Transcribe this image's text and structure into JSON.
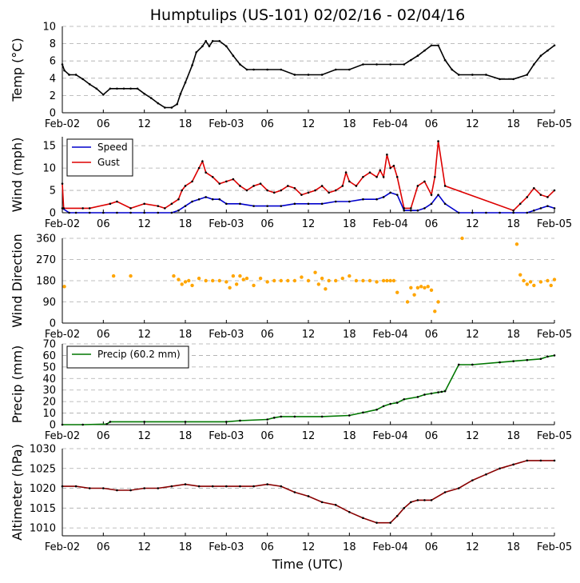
{
  "title": "Humptulips (US-101) 02/02/16 - 02/04/16",
  "xlabel": "Time (UTC)",
  "x_ticks": [
    "Feb-02",
    "06",
    "12",
    "18",
    "Feb-03",
    "06",
    "12",
    "18",
    "Feb-04",
    "06",
    "12",
    "18",
    "Feb-05"
  ],
  "chart_data": [
    {
      "type": "line",
      "name": "temperature",
      "ylabel": "Temp (°C)",
      "ylim": [
        0,
        10
      ],
      "yticks": [
        "0",
        "2",
        "4",
        "6",
        "8",
        "10"
      ],
      "x_unit": "hours since Feb-02 00:00 UTC",
      "series": [
        {
          "name": "Temp",
          "color": "#000000",
          "x": [
            0,
            0.3,
            1,
            2,
            3,
            4,
            5,
            6,
            7,
            8,
            9,
            10,
            11,
            12,
            13,
            14,
            15,
            16,
            16.8,
            17.3,
            18,
            19,
            19.6,
            20.5,
            21,
            21.5,
            22,
            23,
            24,
            25,
            26,
            27,
            28,
            30,
            32,
            34,
            36,
            38,
            40,
            42,
            44,
            46,
            48,
            50,
            51,
            52,
            53,
            54,
            55,
            56,
            57,
            58,
            60,
            62,
            64,
            66,
            68,
            69,
            70,
            71,
            72
          ],
          "y": [
            5.6,
            4.9,
            4.4,
            4.4,
            3.9,
            3.3,
            2.8,
            2.1,
            2.8,
            2.8,
            2.8,
            2.8,
            2.8,
            2.2,
            1.7,
            1.1,
            0.6,
            0.6,
            1.0,
            2.2,
            3.5,
            5.5,
            7.0,
            7.7,
            8.3,
            7.7,
            8.3,
            8.3,
            7.7,
            6.6,
            5.6,
            5.0,
            5.0,
            5.0,
            5.0,
            4.4,
            4.4,
            4.4,
            5.0,
            5.0,
            5.6,
            5.6,
            5.6,
            5.6,
            6.1,
            6.6,
            7.2,
            7.8,
            7.8,
            6.1,
            5.0,
            4.4,
            4.4,
            4.4,
            3.9,
            3.9,
            4.4,
            5.6,
            6.6,
            7.2,
            7.8
          ]
        }
      ]
    },
    {
      "type": "line",
      "name": "wind",
      "ylabel": "Wind (mph)",
      "ylim": [
        0,
        17
      ],
      "yticks": [
        "0",
        "5",
        "10",
        "15"
      ],
      "legend": [
        "Speed",
        "Gust"
      ],
      "legend_position": "top-left",
      "series": [
        {
          "name": "Speed",
          "color": "#0000cc",
          "x": [
            0,
            1,
            2,
            4,
            6,
            8,
            10,
            12,
            14,
            16,
            17,
            18,
            19,
            20,
            21,
            22,
            23,
            24,
            26,
            28,
            30,
            32,
            34,
            36,
            38,
            40,
            42,
            44,
            46,
            47,
            48,
            49,
            50,
            51,
            52,
            53,
            54,
            55,
            56,
            58,
            60,
            62,
            64,
            66,
            68,
            69,
            70,
            71,
            72
          ],
          "y": [
            1,
            0,
            0,
            0,
            0,
            0,
            0,
            0,
            0,
            0,
            0.5,
            1.5,
            2.5,
            3,
            3.5,
            3,
            3,
            2,
            2,
            1.5,
            1.5,
            1.5,
            2,
            2,
            2,
            2.5,
            2.5,
            3,
            3,
            3.5,
            4.5,
            4,
            0.5,
            0.5,
            0.5,
            1,
            2,
            4,
            2,
            0,
            0,
            0,
            0,
            0,
            0,
            0.5,
            1,
            1.5,
            1
          ]
        },
        {
          "name": "Gust",
          "color": "#dd0000",
          "x": [
            0,
            0.2,
            3,
            4,
            7,
            8,
            10,
            12,
            14,
            15,
            16,
            17,
            17.5,
            18,
            19,
            20,
            20.5,
            21,
            22,
            23,
            24,
            25,
            26,
            27,
            28,
            29,
            30,
            31,
            32,
            33,
            34,
            35,
            36,
            37,
            38,
            39,
            40,
            41,
            41.5,
            42,
            43,
            44,
            45,
            46,
            46.5,
            47,
            47.5,
            48,
            48.5,
            49,
            50,
            51,
            52,
            53,
            54,
            54.5,
            55,
            56,
            66,
            67,
            68,
            69,
            70,
            71,
            72
          ],
          "y": [
            6.5,
            1,
            1,
            1,
            2,
            2.5,
            1,
            2,
            1.5,
            1,
            2,
            3,
            5,
            6,
            7,
            10,
            11.5,
            9,
            8,
            6.5,
            7,
            7.5,
            6,
            5,
            6,
            6.5,
            5,
            4.5,
            5,
            6,
            5.5,
            4,
            4.5,
            5,
            6,
            4.5,
            5,
            6,
            9,
            7,
            6,
            8,
            9,
            8,
            9.5,
            8,
            13,
            10,
            10.5,
            8,
            1,
            1,
            6,
            7,
            4,
            8,
            16,
            6,
            0.5,
            2,
            3.5,
            5.5,
            4,
            3.5,
            5
          ]
        }
      ]
    },
    {
      "type": "scatter",
      "name": "wind_direction",
      "ylabel": "Wind Direction",
      "ylim": [
        0,
        360
      ],
      "yticks": [
        "0",
        "90",
        "180",
        "270",
        "360"
      ],
      "series": [
        {
          "name": "Direction",
          "color": "#ffa500",
          "x": [
            0.3,
            7.5,
            10,
            16.3,
            17,
            17.5,
            18,
            18.5,
            19,
            20,
            21,
            22,
            23,
            24,
            24.5,
            25,
            25.5,
            26,
            26.5,
            27,
            28,
            29,
            30,
            31,
            32,
            33,
            34,
            35,
            36,
            37,
            37.5,
            38,
            38.5,
            39,
            40,
            41,
            42,
            43,
            44,
            45,
            46,
            47,
            47.5,
            48,
            48.5,
            49,
            50.5,
            51,
            51.5,
            52,
            52.5,
            53,
            53.5,
            54,
            54.5,
            55,
            58.5,
            66.5,
            67,
            67.5,
            68,
            68.5,
            69,
            70,
            71,
            71.5,
            72
          ],
          "y": [
            155,
            200,
            200,
            200,
            185,
            165,
            175,
            180,
            160,
            190,
            180,
            180,
            180,
            175,
            150,
            200,
            165,
            200,
            185,
            190,
            160,
            190,
            175,
            180,
            180,
            180,
            180,
            195,
            180,
            215,
            165,
            190,
            145,
            180,
            180,
            190,
            200,
            180,
            180,
            180,
            175,
            180,
            180,
            180,
            180,
            130,
            90,
            150,
            120,
            150,
            155,
            150,
            155,
            140,
            50,
            90,
            360,
            335,
            205,
            180,
            165,
            175,
            160,
            175,
            180,
            160,
            185
          ]
        }
      ]
    },
    {
      "type": "line",
      "name": "precip",
      "ylabel": "Precip (mm)",
      "ylim": [
        0,
        70
      ],
      "yticks": [
        "0",
        "10",
        "20",
        "30",
        "40",
        "50",
        "60",
        "70"
      ],
      "legend": [
        "Precip (60.2 mm)"
      ],
      "legend_position": "top-left",
      "series": [
        {
          "name": "Precip (60.2 mm)",
          "color": "#007700",
          "x": [
            0,
            3,
            6.5,
            7,
            12,
            18,
            24,
            26,
            30,
            31,
            32,
            34,
            38,
            42,
            44,
            46,
            47,
            48,
            49,
            50,
            52,
            53,
            54,
            55,
            55.5,
            56,
            58,
            60,
            64,
            66,
            68,
            70,
            71,
            72
          ],
          "y": [
            0,
            0,
            0.5,
            2.5,
            2.5,
            2.5,
            2.5,
            3.5,
            4.5,
            6,
            7,
            7,
            7,
            8,
            10.5,
            13,
            16,
            18,
            19,
            22,
            24,
            26,
            27,
            28,
            28.5,
            29,
            52,
            52,
            54,
            55,
            56,
            57,
            59,
            60
          ]
        }
      ]
    },
    {
      "type": "line",
      "name": "altimeter",
      "ylabel": "Altimeter (hPa)",
      "ylim": [
        1008,
        1030
      ],
      "yticks": [
        "1010",
        "1015",
        "1020",
        "1025",
        "1030"
      ],
      "series": [
        {
          "name": "Altimeter",
          "color": "#880000",
          "x": [
            0,
            2,
            4,
            6,
            8,
            10,
            12,
            14,
            16,
            18,
            20,
            22,
            24,
            26,
            28,
            30,
            32,
            34,
            36,
            38,
            40,
            42,
            44,
            46,
            48,
            49,
            50,
            51,
            52,
            53,
            54,
            56,
            58,
            60,
            62,
            64,
            66,
            68,
            70,
            72
          ],
          "y": [
            1020.5,
            1020.5,
            1020,
            1020,
            1019.5,
            1019.5,
            1020,
            1020,
            1020.5,
            1021,
            1020.5,
            1020.5,
            1020.5,
            1020.5,
            1020.5,
            1021,
            1020.5,
            1019,
            1018,
            1016.5,
            1015.8,
            1014,
            1012.5,
            1011.3,
            1011.3,
            1013,
            1015,
            1016.5,
            1017,
            1017,
            1017,
            1019,
            1020,
            1022,
            1023.5,
            1025,
            1026,
            1027,
            1027,
            1027
          ]
        }
      ]
    }
  ]
}
